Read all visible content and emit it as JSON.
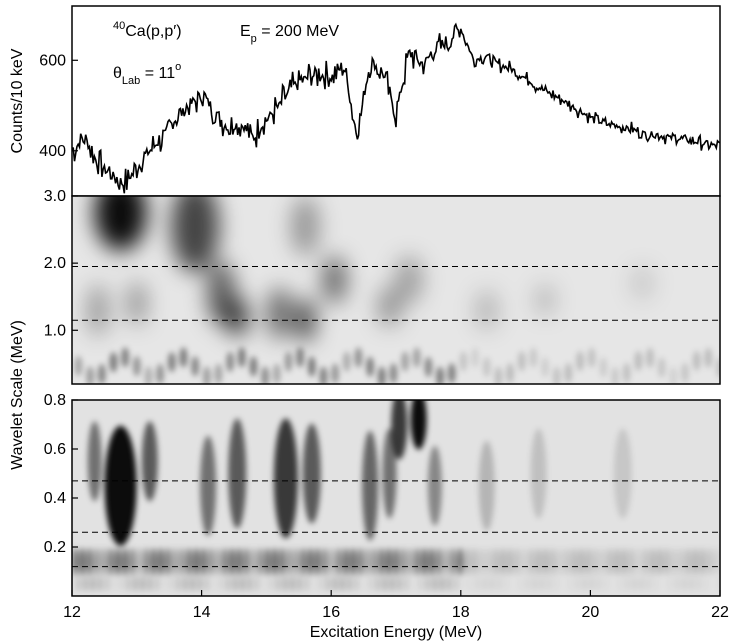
{
  "chart_data": [
    {
      "type": "line",
      "panel": "spectrum",
      "ylabel": "Counts/10 keV",
      "xlim": [
        12,
        22
      ],
      "ylim": [
        300,
        720
      ],
      "yticks": [
        "400",
        "600"
      ],
      "annotations": {
        "reaction_sup": "40",
        "reaction": "Ca(p,p′)",
        "energy_main": "E",
        "energy_sub": "p",
        "energy_rest": " = 200 MeV",
        "angle_main": "θ",
        "angle_sub": "Lab",
        "angle_rest": " = 11",
        "angle_sup": "o"
      },
      "x": [
        12.0,
        12.2,
        12.4,
        12.6,
        12.8,
        13.0,
        13.2,
        13.4,
        13.6,
        13.8,
        14.0,
        14.2,
        14.4,
        14.6,
        14.8,
        15.0,
        15.2,
        15.4,
        15.6,
        15.8,
        16.0,
        16.2,
        16.4,
        16.6,
        16.8,
        17.0,
        17.2,
        17.4,
        17.6,
        17.8,
        18.0,
        18.2,
        18.4,
        18.6,
        18.8,
        19.0,
        19.2,
        19.4,
        19.6,
        19.8,
        20.0,
        20.2,
        20.4,
        20.6,
        20.8,
        21.0,
        21.2,
        21.4,
        21.6,
        21.8,
        22.0
      ],
      "y": [
        400,
        430,
        370,
        350,
        325,
        360,
        400,
        430,
        470,
        500,
        520,
        490,
        450,
        460,
        430,
        470,
        500,
        540,
        560,
        570,
        560,
        590,
        430,
        600,
        570,
        480,
        620,
        590,
        620,
        640,
        670,
        600,
        610,
        590,
        580,
        560,
        540,
        525,
        510,
        490,
        475,
        460,
        455,
        450,
        440,
        435,
        430,
        425,
        420,
        415,
        410
      ]
    },
    {
      "type": "heatmap",
      "panel": "wavelet-upper",
      "ylim": [
        0.2,
        3.0
      ],
      "yticks": [
        "1.0",
        "2.0",
        "3.0"
      ],
      "dashed_lines": [
        1.15,
        1.95
      ]
    },
    {
      "type": "heatmap",
      "panel": "wavelet-lower",
      "ylabel_shared": "Wavelet Scale (MeV)",
      "xlabel": "Excitation Energy (MeV)",
      "xlim": [
        12,
        22
      ],
      "ylim": [
        0.0,
        0.8
      ],
      "yticks": [
        "0.2",
        "0.4",
        "0.6",
        "0.8"
      ],
      "xticks": [
        "12",
        "14",
        "16",
        "18",
        "20",
        "22"
      ],
      "dashed_lines": [
        0.12,
        0.26,
        0.47
      ]
    }
  ]
}
